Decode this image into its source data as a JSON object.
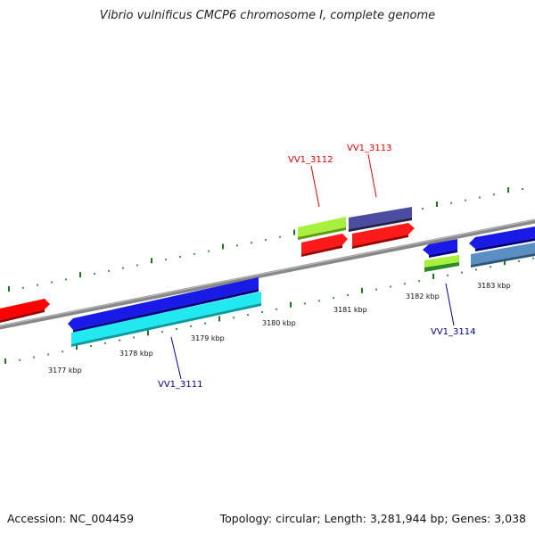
{
  "title": "Vibrio vulnificus CMCP6 chromosome I, complete genome",
  "footer": {
    "accession": "Accession: NC_004459",
    "stats": "Topology: circular; Length: 3,281,944 bp; Genes: 3,038"
  },
  "map": {
    "ticks": [
      {
        "label": "3177 kbp"
      },
      {
        "label": "3178 kbp"
      },
      {
        "label": "3179 kbp"
      },
      {
        "label": "3180 kbp"
      },
      {
        "label": "3181 kbp"
      },
      {
        "label": "3182 kbp"
      },
      {
        "label": "3183 kbp"
      }
    ],
    "gene_labels": [
      {
        "text": "VV1_3111",
        "color": "#00008b"
      },
      {
        "text": "VV1_3112",
        "color": "#e00000"
      },
      {
        "text": "VV1_3113",
        "color": "#e00000"
      },
      {
        "text": "VV1_3114",
        "color": "#00008b"
      }
    ],
    "colors": {
      "backbone": "#808080",
      "red": "#ff0000",
      "blue": "#0000ee",
      "cyan": "#00e5ee",
      "lime": "#99ee33",
      "slate": "#4a4a9a",
      "green": "#228b22",
      "steel": "#5a8fc0",
      "tick": "#1a7a1a"
    }
  }
}
